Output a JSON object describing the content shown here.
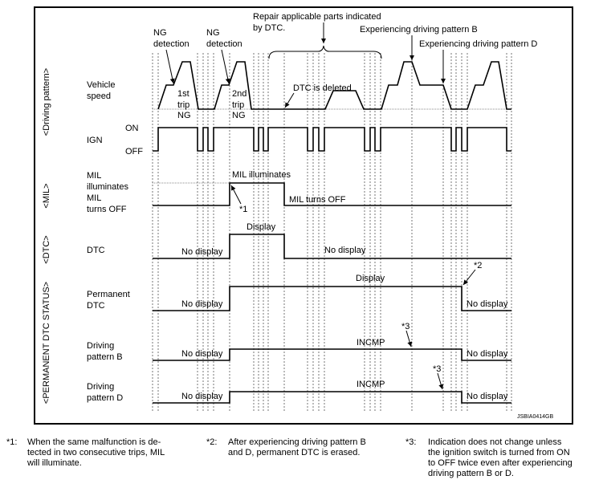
{
  "diagram": {
    "figure_id": "JSBIA0414GB",
    "groups": {
      "driving_pattern": "<Driving pattern>",
      "mil": "<MIL>",
      "dtc": "<DTC>",
      "permanent": "<PERMANENT DTC STATUS>"
    },
    "rows": {
      "vehicle_speed": [
        "Vehicle",
        "speed"
      ],
      "ign": "IGN",
      "ign_on": "ON",
      "ign_off": "OFF",
      "mil_illuminates": [
        "MIL",
        "illuminates"
      ],
      "mil_turns_off": [
        "MIL",
        "turns OFF"
      ],
      "dtc": "DTC",
      "permanent_dtc": [
        "Permanent",
        "DTC"
      ],
      "pattern_b": [
        "Driving",
        "pattern B"
      ],
      "pattern_d": [
        "Driving",
        "pattern D"
      ]
    },
    "annotations": {
      "ng_detection_1": [
        "NG",
        "detection"
      ],
      "ng_detection_2": [
        "NG",
        "detection"
      ],
      "trip1": [
        "1st",
        "trip",
        "NG"
      ],
      "trip2": [
        "2nd",
        "trip",
        "NG"
      ],
      "repair": [
        "Repair applicable parts indicated",
        "by DTC."
      ],
      "exp_b": "Experiencing driving pattern B",
      "exp_d": "Experiencing driving pattern D",
      "dtc_deleted": "DTC is deleted",
      "mil_illuminates": "MIL illuminates",
      "mil_turns_off": "MIL turns OFF",
      "star1": "*1",
      "star2": "*2",
      "star3a": "*3",
      "star3b": "*3",
      "dtc_display": "Display",
      "dtc_no_display_1": "No display",
      "dtc_no_display_2": "No display",
      "perm_display": "Display",
      "perm_no_display_1": "No display",
      "perm_no_display_2": "No display",
      "b_incmp": "INCMP",
      "b_no_display_1": "No display",
      "b_no_display_2": "No display",
      "d_incmp": "INCMP",
      "d_no_display_1": "No display",
      "d_no_display_2": "No display"
    }
  },
  "footnotes": [
    {
      "key": "*1:",
      "text": [
        "When the same malfunction is de-",
        "tected in two consecutive trips, MIL",
        "will illuminate."
      ]
    },
    {
      "key": "*2:",
      "text": [
        "After experiencing driving pattern B",
        "and D, permanent DTC is erased."
      ]
    },
    {
      "key": "*3:",
      "text": [
        "Indication does not change unless",
        "the ignition switch is turned from ON",
        "to OFF twice even after experiencing",
        "driving pattern B or D."
      ]
    }
  ]
}
